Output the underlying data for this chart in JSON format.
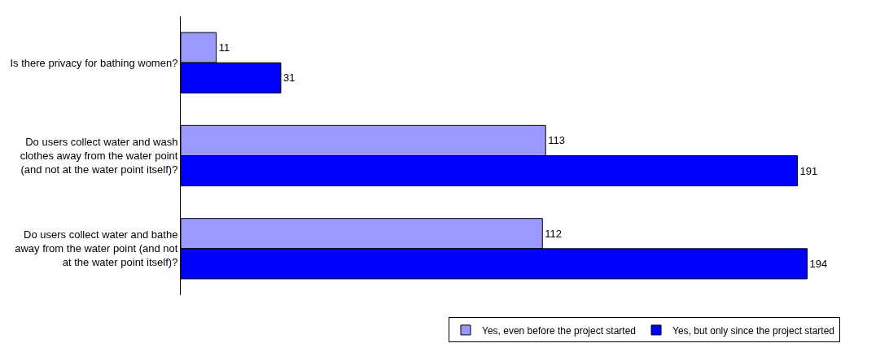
{
  "chart_data": {
    "type": "bar",
    "orientation": "horizontal",
    "categories": [
      "Is there privacy for bathing women?",
      "Do users collect water and wash clothes away from the water point (and not at the water point itself)?",
      "Do users collect water and bathe away from the water point (and not at the water point itself)?"
    ],
    "series": [
      {
        "name": "Yes, even before the project started",
        "color": "#9999ff",
        "values": [
          11,
          113,
          112
        ]
      },
      {
        "name": "Yes, but only since the project started",
        "color": "#0000ff",
        "values": [
          31,
          191,
          194
        ]
      }
    ],
    "data_labels": true,
    "tick_labels": "y",
    "legend": "bottom right"
  }
}
